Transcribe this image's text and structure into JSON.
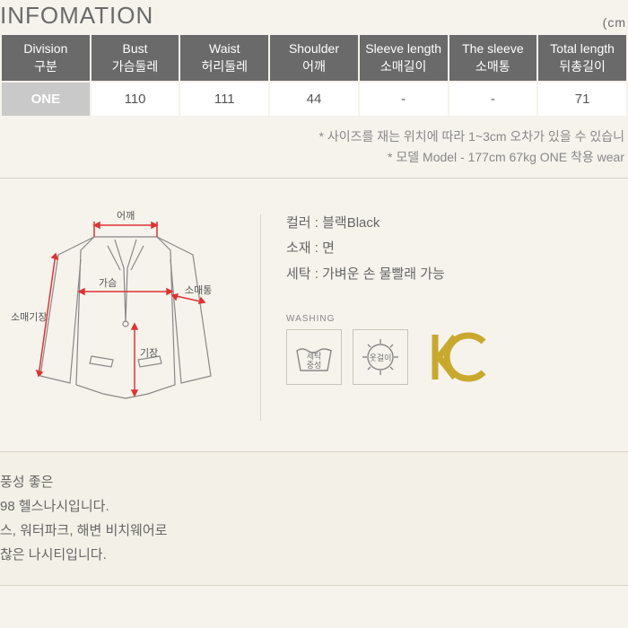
{
  "header": {
    "title": "INFOMATION",
    "unit": "(cm"
  },
  "table": {
    "columns": [
      {
        "en": "Division",
        "ko": "구분"
      },
      {
        "en": "Bust",
        "ko": "가슴둘레"
      },
      {
        "en": "Waist",
        "ko": "허리둘레"
      },
      {
        "en": "Shoulder",
        "ko": "어깨"
      },
      {
        "en": "Sleeve length",
        "ko": "소매길이"
      },
      {
        "en": "The sleeve",
        "ko": "소매통"
      },
      {
        "en": "Total length",
        "ko": "뒤총길이"
      }
    ],
    "row": {
      "label": "ONE",
      "values": [
        "110",
        "111",
        "44",
        "-",
        "-",
        "71"
      ]
    }
  },
  "notes": {
    "l1": "* 사이즈를 재는 위치에 따라 1~3cm 오차가 있을 수 있습니",
    "l2": "* 모델 Model - 177cm 67kg ONE 착용 wear"
  },
  "diagram": {
    "labels": {
      "shoulder": "어깨",
      "bust": "가슴",
      "sleeveW": "소매통",
      "sleeveL": "소매기장",
      "length": "기장"
    },
    "lineColor": "#d33",
    "strokeColor": "#888"
  },
  "info": {
    "color": "컬러 : 블랙Black",
    "material": "소재 : 면",
    "wash": "세탁 : 가벼운 손 물빨래 가능",
    "washLabel": "WASHING",
    "icon1": {
      "t": "세탁",
      "b": "중성"
    },
    "icon2": "옷걸이",
    "kcColor": "#c8a92e"
  },
  "bottom": {
    "l1": "풍성 좋은",
    "l2": "98 헬스나시입니다.",
    "l3": "스, 워터파크, 해변 비치웨어로",
    "l4": "찮은 나시티입니다."
  }
}
